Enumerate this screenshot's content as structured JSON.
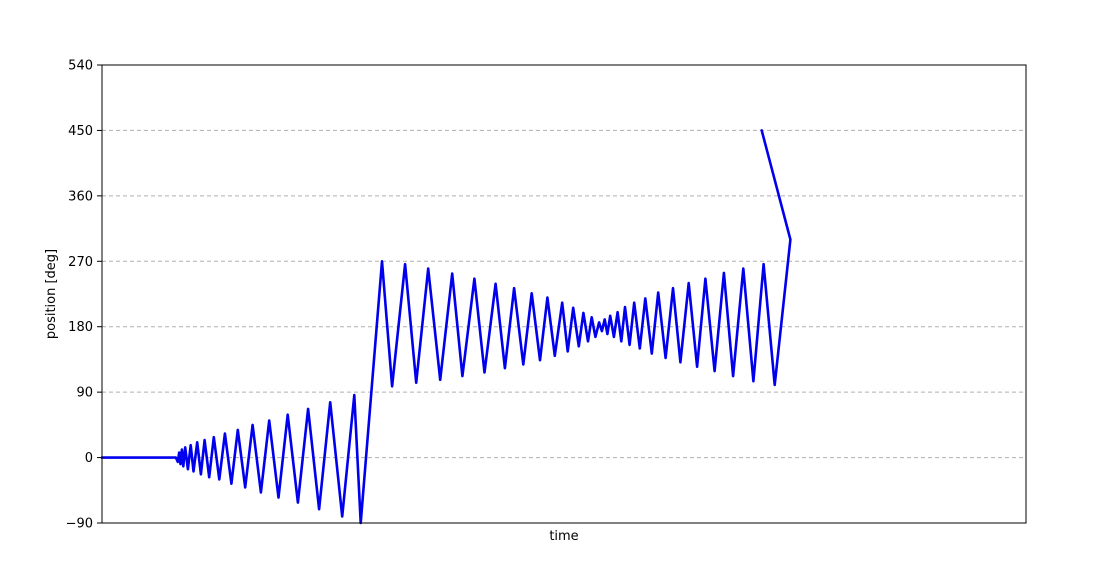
{
  "chart_data": {
    "type": "line",
    "title": "",
    "xlabel": "time",
    "ylabel": "position [deg]",
    "ylim": [
      -90,
      540
    ],
    "yticks": [
      -90,
      0,
      90,
      180,
      270,
      360,
      450,
      540
    ],
    "ytick_labels": [
      "−90",
      "0",
      "90",
      "180",
      "270",
      "360",
      "450",
      "540"
    ],
    "xlim": [
      0,
      100
    ],
    "xticks_shown": false,
    "grid": "horizontal-dashed",
    "legend": "none",
    "colors": {
      "series": "#0000ee",
      "grid": "#b0b0b0",
      "axes": "#000000"
    },
    "series": [
      {
        "color": "#0000ee",
        "points": [
          [
            0,
            0
          ],
          [
            8.0,
            0
          ],
          [
            8.2,
            -6
          ],
          [
            8.35,
            7
          ],
          [
            8.5,
            -9
          ],
          [
            8.65,
            11
          ],
          [
            8.8,
            -12
          ],
          [
            9.0,
            14
          ],
          [
            9.3,
            -16
          ],
          [
            9.6,
            17
          ],
          [
            9.9,
            -19
          ],
          [
            10.3,
            21
          ],
          [
            10.7,
            -23
          ],
          [
            11.1,
            24
          ],
          [
            11.6,
            -27
          ],
          [
            12.1,
            28
          ],
          [
            12.7,
            -30
          ],
          [
            13.3,
            33
          ],
          [
            14.0,
            -36
          ],
          [
            14.7,
            38
          ],
          [
            15.5,
            -41
          ],
          [
            16.3,
            45
          ],
          [
            17.2,
            -48
          ],
          [
            18.1,
            51
          ],
          [
            19.1,
            -55
          ],
          [
            20.1,
            59
          ],
          [
            21.2,
            -62
          ],
          [
            22.3,
            67
          ],
          [
            23.5,
            -71
          ],
          [
            24.7,
            76
          ],
          [
            26.0,
            -81
          ],
          [
            27.3,
            86
          ],
          [
            28.0,
            -90
          ],
          [
            30.3,
            270
          ],
          [
            31.4,
            98
          ],
          [
            32.8,
            266
          ],
          [
            34.0,
            103
          ],
          [
            35.3,
            260
          ],
          [
            36.6,
            107
          ],
          [
            37.9,
            253
          ],
          [
            39.0,
            112
          ],
          [
            40.3,
            246
          ],
          [
            41.4,
            117
          ],
          [
            42.6,
            239
          ],
          [
            43.6,
            123
          ],
          [
            44.6,
            233
          ],
          [
            45.6,
            128
          ],
          [
            46.5,
            226
          ],
          [
            47.4,
            134
          ],
          [
            48.2,
            220
          ],
          [
            49.0,
            140
          ],
          [
            49.8,
            213
          ],
          [
            50.4,
            146
          ],
          [
            51.0,
            206
          ],
          [
            51.6,
            153
          ],
          [
            52.1,
            199
          ],
          [
            52.6,
            160
          ],
          [
            53.0,
            193
          ],
          [
            53.4,
            166
          ],
          [
            53.8,
            186
          ],
          [
            54.1,
            174
          ],
          [
            54.4,
            190
          ],
          [
            54.7,
            170
          ],
          [
            55.0,
            195
          ],
          [
            55.4,
            166
          ],
          [
            55.8,
            200
          ],
          [
            56.2,
            160
          ],
          [
            56.6,
            207
          ],
          [
            57.1,
            155
          ],
          [
            57.6,
            213
          ],
          [
            58.2,
            150
          ],
          [
            58.8,
            219
          ],
          [
            59.5,
            143
          ],
          [
            60.2,
            227
          ],
          [
            61.0,
            137
          ],
          [
            61.8,
            233
          ],
          [
            62.6,
            131
          ],
          [
            63.5,
            240
          ],
          [
            64.4,
            125
          ],
          [
            65.3,
            246
          ],
          [
            66.3,
            119
          ],
          [
            67.3,
            254
          ],
          [
            68.3,
            112
          ],
          [
            69.4,
            260
          ],
          [
            70.5,
            105
          ],
          [
            71.6,
            266
          ],
          [
            72.8,
            100
          ],
          [
            71.6,
            266
          ],
          [
            72.8,
            100
          ],
          [
            74.5,
            300
          ],
          [
            71.4,
            450
          ]
        ]
      }
    ]
  }
}
